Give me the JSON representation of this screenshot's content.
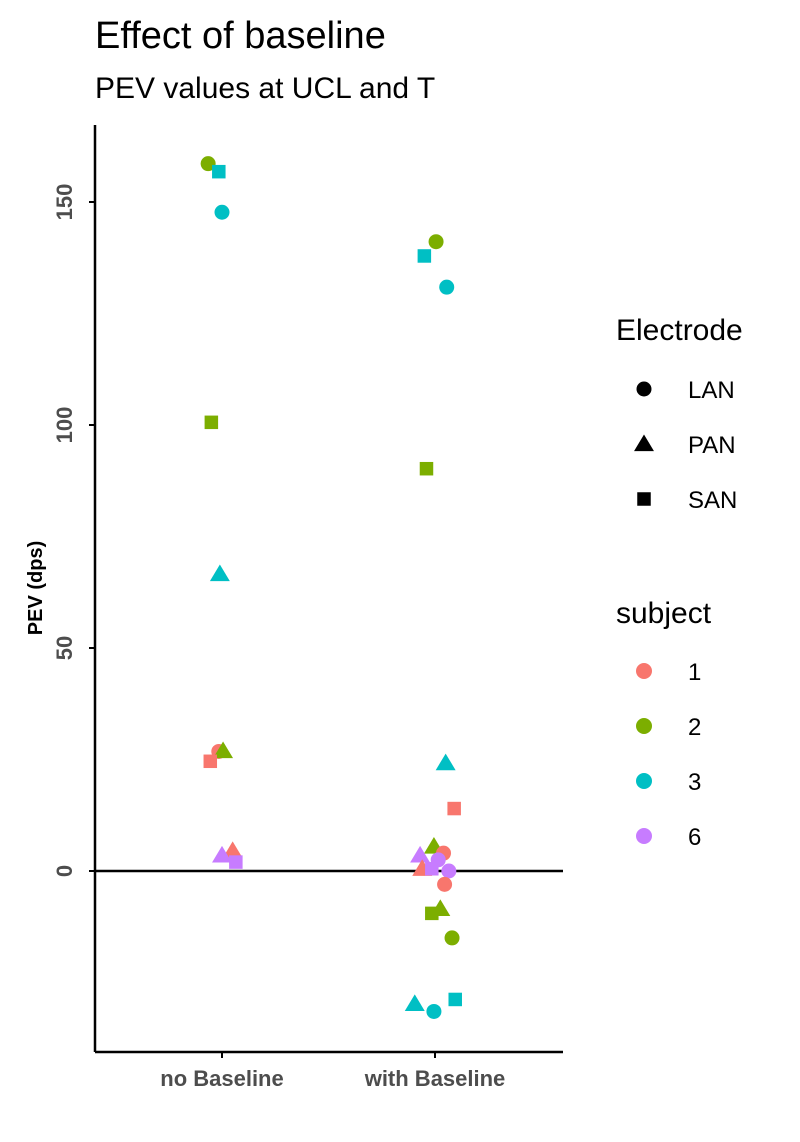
{
  "chart_data": {
    "type": "scatter",
    "title": "Effect of baseline",
    "subtitle": "PEV values at UCL and T",
    "xlabel": "",
    "ylabel": "PEV (dps)",
    "categories": [
      "no Baseline",
      "with Baseline"
    ],
    "ylim": [
      -40,
      165
    ],
    "yticks": [
      0,
      50,
      100,
      150
    ],
    "reference_line_y": 0,
    "legend_shape": {
      "title": "Electrode",
      "entries": [
        {
          "label": "LAN",
          "shape": "circle"
        },
        {
          "label": "PAN",
          "shape": "triangle"
        },
        {
          "label": "SAN",
          "shape": "square"
        }
      ]
    },
    "legend_color": {
      "title": "subject",
      "entries": [
        {
          "label": "1",
          "color": "#F8766D"
        },
        {
          "label": "2",
          "color": "#7CAE00"
        },
        {
          "label": "3",
          "color": "#00BFC4"
        },
        {
          "label": "6",
          "color": "#C77CFF"
        }
      ]
    },
    "points": [
      {
        "category": "no Baseline",
        "electrode": "LAN",
        "subject": "2",
        "y": 158.6,
        "jitter": -0.13
      },
      {
        "category": "no Baseline",
        "electrode": "SAN",
        "subject": "3",
        "y": 156.8,
        "jitter": -0.03
      },
      {
        "category": "no Baseline",
        "electrode": "LAN",
        "subject": "3",
        "y": 147.7,
        "jitter": 0.0
      },
      {
        "category": "no Baseline",
        "electrode": "SAN",
        "subject": "2",
        "y": 100.6,
        "jitter": -0.1
      },
      {
        "category": "no Baseline",
        "electrode": "PAN",
        "subject": "3",
        "y": 66.6,
        "jitter": -0.02
      },
      {
        "category": "no Baseline",
        "electrode": "LAN",
        "subject": "1",
        "y": 26.8,
        "jitter": -0.03
      },
      {
        "category": "no Baseline",
        "electrode": "PAN",
        "subject": "2",
        "y": 26.9,
        "jitter": 0.01
      },
      {
        "category": "no Baseline",
        "electrode": "SAN",
        "subject": "1",
        "y": 24.6,
        "jitter": -0.11
      },
      {
        "category": "no Baseline",
        "electrode": "PAN",
        "subject": "1",
        "y": 4.5,
        "jitter": 0.1
      },
      {
        "category": "no Baseline",
        "electrode": "PAN",
        "subject": "6",
        "y": 3.5,
        "jitter": 0.0
      },
      {
        "category": "no Baseline",
        "electrode": "SAN",
        "subject": "6",
        "y": 2.0,
        "jitter": 0.13
      },
      {
        "category": "with Baseline",
        "electrode": "LAN",
        "subject": "2",
        "y": 141.1,
        "jitter": 0.01
      },
      {
        "category": "with Baseline",
        "electrode": "SAN",
        "subject": "3",
        "y": 137.9,
        "jitter": -0.1
      },
      {
        "category": "with Baseline",
        "electrode": "LAN",
        "subject": "3",
        "y": 130.9,
        "jitter": 0.11
      },
      {
        "category": "with Baseline",
        "electrode": "SAN",
        "subject": "2",
        "y": 90.2,
        "jitter": -0.08
      },
      {
        "category": "with Baseline",
        "electrode": "PAN",
        "subject": "3",
        "y": 24.2,
        "jitter": 0.1
      },
      {
        "category": "with Baseline",
        "electrode": "SAN",
        "subject": "1",
        "y": 14.0,
        "jitter": 0.18
      },
      {
        "category": "with Baseline",
        "electrode": "PAN",
        "subject": "2",
        "y": 5.5,
        "jitter": -0.01
      },
      {
        "category": "with Baseline",
        "electrode": "LAN",
        "subject": "1",
        "y": 4.0,
        "jitter": 0.08
      },
      {
        "category": "with Baseline",
        "electrode": "PAN",
        "subject": "6",
        "y": 3.5,
        "jitter": -0.14
      },
      {
        "category": "with Baseline",
        "electrode": "LAN",
        "subject": "6",
        "y": 2.5,
        "jitter": 0.03
      },
      {
        "category": "with Baseline",
        "electrode": "PAN",
        "subject": "1",
        "y": 0.5,
        "jitter": -0.12
      },
      {
        "category": "with Baseline",
        "electrode": "SAN",
        "subject": "6",
        "y": 0.5,
        "jitter": -0.03
      },
      {
        "category": "with Baseline",
        "electrode": "LAN",
        "subject": "6",
        "y": 0.0,
        "jitter": 0.13
      },
      {
        "category": "with Baseline",
        "electrode": "LAN",
        "subject": "1",
        "y": -3.0,
        "jitter": 0.09
      },
      {
        "category": "with Baseline",
        "electrode": "SAN",
        "subject": "2",
        "y": -9.5,
        "jitter": -0.03
      },
      {
        "category": "with Baseline",
        "electrode": "PAN",
        "subject": "2",
        "y": -8.5,
        "jitter": 0.05
      },
      {
        "category": "with Baseline",
        "electrode": "LAN",
        "subject": "2",
        "y": -15.0,
        "jitter": 0.16
      },
      {
        "category": "with Baseline",
        "electrode": "SAN",
        "subject": "3",
        "y": -28.8,
        "jitter": 0.19
      },
      {
        "category": "with Baseline",
        "electrode": "PAN",
        "subject": "3",
        "y": -29.8,
        "jitter": -0.19
      },
      {
        "category": "with Baseline",
        "electrode": "LAN",
        "subject": "3",
        "y": -31.5,
        "jitter": -0.01
      }
    ]
  }
}
